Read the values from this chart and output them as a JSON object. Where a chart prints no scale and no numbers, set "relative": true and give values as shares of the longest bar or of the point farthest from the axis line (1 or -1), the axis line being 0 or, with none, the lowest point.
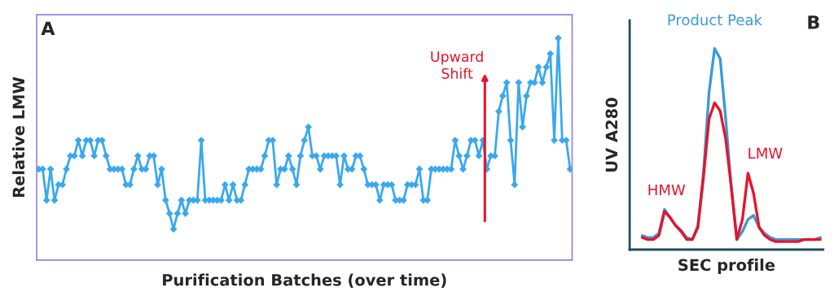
{
  "chart_data": [
    {
      "type": "line",
      "title": "A",
      "xlabel": "Purification Batches (over time)",
      "ylabel": "Relative LMW",
      "relative": true,
      "marker": "diamond",
      "line_style": "solid",
      "legend": false,
      "categories": [
        null,
        null,
        null,
        null,
        null,
        null,
        null,
        null,
        null,
        null,
        null,
        null,
        null,
        null,
        null,
        null,
        null,
        null,
        null,
        null,
        null,
        null,
        null,
        null,
        null,
        null,
        null,
        null,
        null,
        null,
        null,
        null,
        null,
        null,
        null,
        null,
        null,
        null,
        null,
        null,
        null,
        null,
        null,
        null,
        null,
        null,
        null,
        null,
        null,
        null,
        null,
        null,
        null,
        null,
        null,
        null,
        null,
        null,
        null,
        null,
        null,
        null,
        null,
        null,
        null,
        null,
        null,
        null,
        null,
        null,
        null,
        null,
        null,
        null,
        null,
        null,
        null,
        null,
        null,
        null,
        null,
        null,
        null,
        null,
        null,
        null,
        null,
        null,
        null,
        null,
        null,
        null,
        null,
        null,
        null,
        null,
        null,
        null,
        null,
        null,
        null,
        null,
        null,
        null,
        null,
        null,
        null,
        null,
        null,
        null,
        null,
        null,
        null,
        null,
        null,
        null,
        null,
        null,
        null,
        null,
        null,
        null,
        null,
        null,
        null,
        null,
        null,
        null,
        null,
        null,
        null,
        null,
        null,
        null,
        null
      ],
      "series": [
        {
          "color": "#3aa8f0",
          "values": [
            0.41,
            0.41,
            0.27,
            0.41,
            0.27,
            0.34,
            0.34,
            0.41,
            0.47,
            0.47,
            0.54,
            0.47,
            0.54,
            0.54,
            0.47,
            0.54,
            0.54,
            0.47,
            0.41,
            0.41,
            0.41,
            0.41,
            0.34,
            0.34,
            0.41,
            0.47,
            0.41,
            0.41,
            0.47,
            0.47,
            0.34,
            0.41,
            0.27,
            0.21,
            0.14,
            0.21,
            0.27,
            0.21,
            0.27,
            0.27,
            0.27,
            0.54,
            0.27,
            0.27,
            0.27,
            0.27,
            0.27,
            0.34,
            0.27,
            0.34,
            0.27,
            0.27,
            0.34,
            0.41,
            0.41,
            0.41,
            0.41,
            0.47,
            0.54,
            0.54,
            0.34,
            0.41,
            0.41,
            0.47,
            0.41,
            0.34,
            0.47,
            0.54,
            0.6,
            0.47,
            0.47,
            0.41,
            0.47,
            0.47,
            0.47,
            0.47,
            0.34,
            0.47,
            0.41,
            0.41,
            0.47,
            0.47,
            0.41,
            0.34,
            0.34,
            0.34,
            0.27,
            0.34,
            0.34,
            0.34,
            0.27,
            0.27,
            0.27,
            0.34,
            0.34,
            0.34,
            0.41,
            0.27,
            0.27,
            0.41,
            0.41,
            0.41,
            0.41,
            0.41,
            0.41,
            0.54,
            0.47,
            0.41,
            0.47,
            0.54,
            0.54,
            0.47,
            0.54,
            0.41,
            0.47,
            0.47,
            0.67,
            0.74,
            0.8,
            0.54,
            0.34,
            0.8,
            0.6,
            0.74,
            0.8,
            0.8,
            0.87,
            0.8,
            0.87,
            0.93,
            0.54,
            1.0,
            0.54,
            0.54,
            0.41
          ]
        }
      ],
      "annotations": [
        "Upward\nShift"
      ]
    },
    {
      "type": "line",
      "title": "B",
      "xlabel": "SEC profile",
      "ylabel": "UV A280",
      "relative": true,
      "marker": "none",
      "line_style": "solid",
      "legend": false,
      "categories": [
        null,
        null,
        null,
        null,
        null,
        null,
        null,
        null,
        null,
        null,
        null,
        null,
        null,
        null,
        null,
        null,
        null,
        null,
        null,
        null,
        null,
        null,
        null,
        null,
        null,
        null,
        null,
        null,
        null,
        null,
        null,
        null,
        null
      ],
      "series": [
        {
          "name": "Product Peak",
          "color": "#3a9ad9",
          "values": [
            0.07,
            0.06,
            0.06,
            0.08,
            0.2,
            0.16,
            0.12,
            0.095,
            0.06,
            0.05,
            0.12,
            0.38,
            0.78,
            1.0,
            0.95,
            0.65,
            0.31,
            0.05,
            0.09,
            0.15,
            0.17,
            0.11,
            0.08,
            0.06,
            0.05,
            0.05,
            0.05,
            0.05,
            0.05,
            0.05,
            0.05,
            0.05,
            0.06
          ]
        },
        {
          "color": "#e8132a",
          "values": [
            0.06,
            0.05,
            0.05,
            0.07,
            0.19,
            0.16,
            0.12,
            0.09,
            0.05,
            0.05,
            0.11,
            0.36,
            0.65,
            0.73,
            0.69,
            0.55,
            0.31,
            0.05,
            0.15,
            0.38,
            0.28,
            0.11,
            0.07,
            0.05,
            0.04,
            0.04,
            0.04,
            0.04,
            0.04,
            0.05,
            0.05,
            0.05,
            0.05
          ]
        }
      ],
      "annotations": [
        "HMW",
        "LMW"
      ]
    }
  ]
}
